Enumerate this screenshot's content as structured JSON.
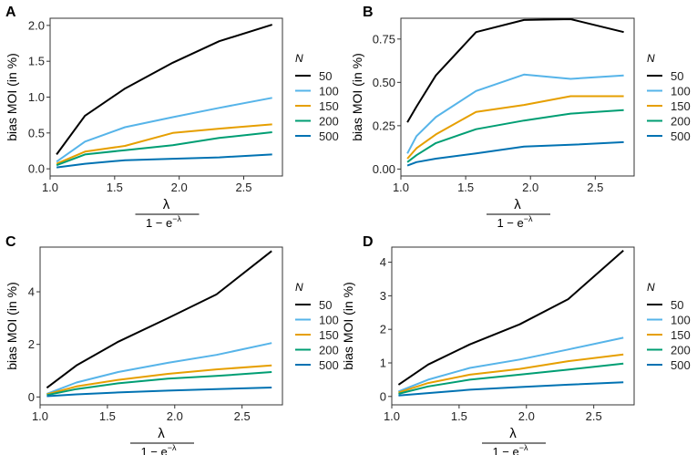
{
  "figure": {
    "legend_title": "N",
    "series_colors": [
      "#000000",
      "#56B4E9",
      "#E69F00",
      "#009E73",
      "#0072B2"
    ]
  },
  "chart_data": [
    {
      "panel": "A",
      "type": "line",
      "ylabel": "bias MOI (in %)",
      "xlabel_num": "λ",
      "xlabel_den": "1 − e",
      "xlim": [
        1.0,
        2.8
      ],
      "ylim": [
        -0.1,
        2.1
      ],
      "xticks": [
        1.0,
        1.5,
        2.0,
        2.5
      ],
      "xtick_labels": [
        "1.0",
        "1.5",
        "2.0",
        "2.5"
      ],
      "yticks": [
        0,
        0.5,
        1.0,
        1.5,
        2.0
      ],
      "ytick_labels": [
        "0.0",
        "0.5",
        "1.0",
        "1.5",
        "2.0"
      ],
      "legend_title": "N",
      "x": [
        1.05,
        1.27,
        1.58,
        1.95,
        2.31,
        2.72
      ],
      "series": [
        {
          "name": "50",
          "values": [
            0.2,
            0.74,
            1.12,
            1.48,
            1.78,
            2.01
          ]
        },
        {
          "name": "100",
          "values": [
            0.1,
            0.38,
            0.58,
            0.72,
            0.85,
            0.99
          ]
        },
        {
          "name": "150",
          "values": [
            0.07,
            0.24,
            0.32,
            0.5,
            0.56,
            0.62
          ]
        },
        {
          "name": "200",
          "values": [
            0.05,
            0.2,
            0.26,
            0.33,
            0.43,
            0.51
          ]
        },
        {
          "name": "500",
          "values": [
            0.02,
            0.07,
            0.12,
            0.14,
            0.16,
            0.2
          ]
        }
      ]
    },
    {
      "panel": "B",
      "type": "line",
      "ylabel": "bias MOI (in %)",
      "xlabel_num": "λ",
      "xlabel_den": "1 − e",
      "xlim": [
        1.0,
        2.8
      ],
      "ylim": [
        -0.04,
        0.87
      ],
      "xticks": [
        1.0,
        1.5,
        2.0,
        2.5
      ],
      "xtick_labels": [
        "1.0",
        "1.5",
        "2.0",
        "2.5"
      ],
      "yticks": [
        0,
        0.25,
        0.5,
        0.75
      ],
      "ytick_labels": [
        "0.00",
        "0.25",
        "0.50",
        "0.75"
      ],
      "legend_title": "N",
      "x": [
        1.05,
        1.12,
        1.27,
        1.58,
        1.95,
        2.31,
        2.72
      ],
      "series": [
        {
          "name": "50",
          "values": [
            0.27,
            0.36,
            0.54,
            0.79,
            0.86,
            0.865,
            0.79
          ]
        },
        {
          "name": "100",
          "values": [
            0.09,
            0.19,
            0.3,
            0.45,
            0.545,
            0.52,
            0.54
          ]
        },
        {
          "name": "150",
          "values": [
            0.06,
            0.12,
            0.2,
            0.33,
            0.37,
            0.42,
            0.42
          ]
        },
        {
          "name": "200",
          "values": [
            0.04,
            0.08,
            0.15,
            0.23,
            0.28,
            0.32,
            0.34
          ]
        },
        {
          "name": "500",
          "values": [
            0.02,
            0.04,
            0.06,
            0.09,
            0.13,
            0.14,
            0.155
          ]
        }
      ]
    },
    {
      "panel": "C",
      "type": "line",
      "ylabel": "bias MOI (in %)",
      "xlabel_num": "λ",
      "xlabel_den": "1 − e",
      "xlim": [
        1.0,
        2.8
      ],
      "ylim": [
        -0.3,
        5.7
      ],
      "xticks": [
        1.0,
        1.5,
        2.0,
        2.5
      ],
      "xtick_labels": [
        "1.0",
        "1.5",
        "2.0",
        "2.5"
      ],
      "yticks": [
        0,
        2,
        4
      ],
      "ytick_labels": [
        "0",
        "2",
        "4"
      ],
      "legend_title": "N",
      "x": [
        1.05,
        1.27,
        1.58,
        1.95,
        2.31,
        2.72
      ],
      "series": [
        {
          "name": "50",
          "values": [
            0.35,
            1.2,
            2.1,
            3.0,
            3.9,
            5.55
          ]
        },
        {
          "name": "100",
          "values": [
            0.12,
            0.55,
            0.95,
            1.3,
            1.6,
            2.05
          ]
        },
        {
          "name": "150",
          "values": [
            0.1,
            0.4,
            0.65,
            0.88,
            1.05,
            1.2
          ]
        },
        {
          "name": "200",
          "values": [
            0.07,
            0.3,
            0.52,
            0.7,
            0.8,
            0.95
          ]
        },
        {
          "name": "500",
          "values": [
            0.03,
            0.1,
            0.17,
            0.24,
            0.3,
            0.36
          ]
        }
      ]
    },
    {
      "panel": "D",
      "type": "line",
      "ylabel": "bias MOI (in %)",
      "xlabel_num": "λ",
      "xlabel_den": "1 − e",
      "xlim": [
        1.0,
        2.8
      ],
      "ylim": [
        -0.25,
        4.45
      ],
      "xticks": [
        1.0,
        1.5,
        2.0,
        2.5
      ],
      "xtick_labels": [
        "1.0",
        "1.5",
        "2.0",
        "2.5"
      ],
      "yticks": [
        0,
        1,
        2,
        3,
        4
      ],
      "ytick_labels": [
        "0",
        "1",
        "2",
        "3",
        "4"
      ],
      "legend_title": "N",
      "x": [
        1.05,
        1.27,
        1.58,
        1.95,
        2.31,
        2.72
      ],
      "series": [
        {
          "name": "50",
          "values": [
            0.35,
            0.95,
            1.55,
            2.15,
            2.9,
            4.35
          ]
        },
        {
          "name": "100",
          "values": [
            0.15,
            0.5,
            0.85,
            1.1,
            1.4,
            1.75
          ]
        },
        {
          "name": "150",
          "values": [
            0.12,
            0.4,
            0.65,
            0.82,
            1.05,
            1.25
          ]
        },
        {
          "name": "200",
          "values": [
            0.08,
            0.3,
            0.5,
            0.65,
            0.8,
            0.98
          ]
        },
        {
          "name": "500",
          "values": [
            0.03,
            0.1,
            0.2,
            0.28,
            0.35,
            0.42
          ]
        }
      ]
    }
  ]
}
